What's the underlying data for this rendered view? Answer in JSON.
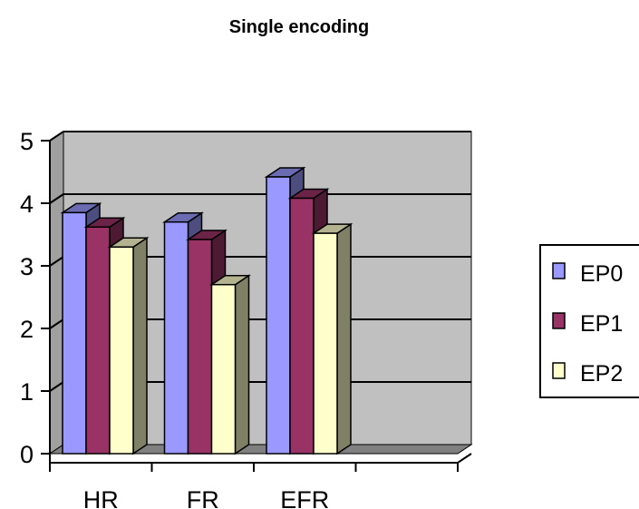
{
  "chart_data": {
    "type": "bar",
    "title": "Single encoding",
    "categories": [
      "HR",
      "FR",
      "EFR"
    ],
    "series": [
      {
        "name": "EP0",
        "values": [
          3.85,
          3.7,
          4.42
        ],
        "color": "#9999ff"
      },
      {
        "name": "EP1",
        "values": [
          3.62,
          3.42,
          4.08
        ],
        "color": "#993366"
      },
      {
        "name": "EP2",
        "values": [
          3.3,
          2.7,
          3.52
        ],
        "color": "#ffffcc"
      }
    ],
    "ylim": [
      0,
      5
    ],
    "yticks": [
      "0",
      "1",
      "2",
      "3",
      "4",
      "5"
    ],
    "grid": true,
    "legend_position": "right",
    "plot_background": "#c0c0c0",
    "projection": "3d"
  }
}
